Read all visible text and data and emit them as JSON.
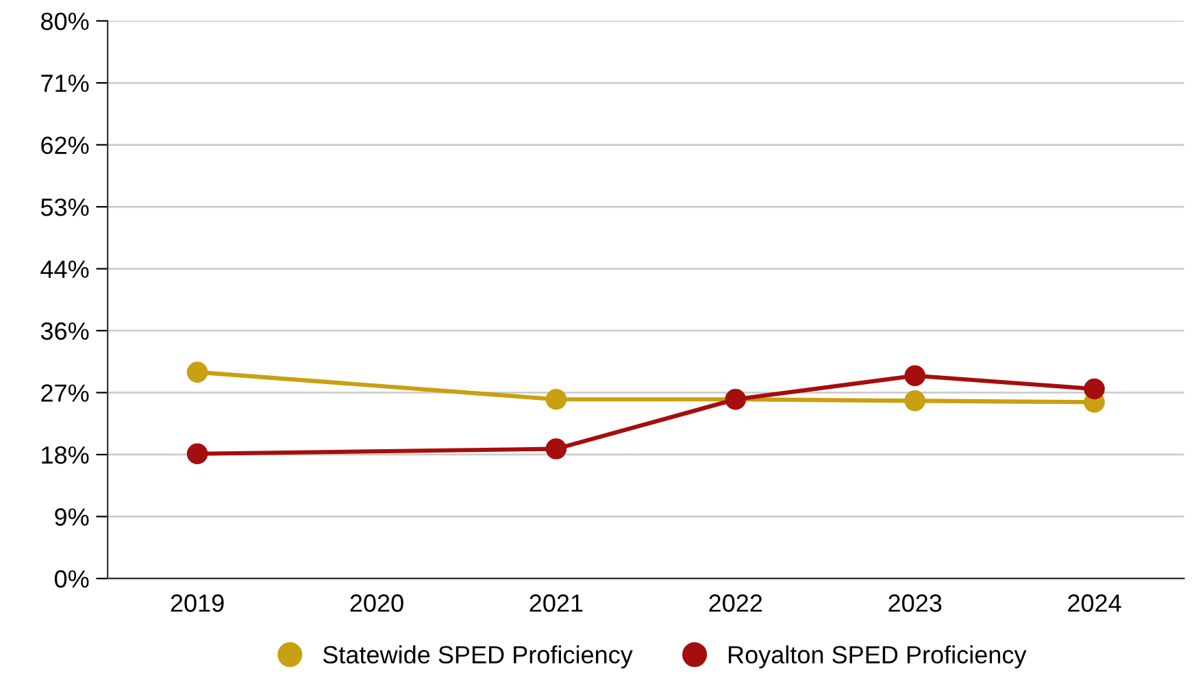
{
  "chart_data": {
    "type": "line",
    "categories": [
      "2019",
      "2020",
      "2021",
      "2022",
      "2023",
      "2024"
    ],
    "series": [
      {
        "name": "Statewide SPED Proficiency",
        "color": "#c9a012",
        "values": [
          29.6,
          null,
          25.7,
          25.7,
          25.5,
          25.3
        ]
      },
      {
        "name": "Royalton SPED Proficiency",
        "color": "#a50e0e",
        "values": [
          17.9,
          null,
          18.6,
          25.7,
          29.1,
          27.2
        ]
      }
    ],
    "ylim": [
      0,
      80
    ],
    "yticks": [
      {
        "value": 0,
        "label": "0%"
      },
      {
        "value": 8.89,
        "label": "9%"
      },
      {
        "value": 17.78,
        "label": "18%"
      },
      {
        "value": 26.67,
        "label": "27%"
      },
      {
        "value": 35.56,
        "label": "36%"
      },
      {
        "value": 44.44,
        "label": "44%"
      },
      {
        "value": 53.33,
        "label": "53%"
      },
      {
        "value": 62.22,
        "label": "62%"
      },
      {
        "value": 71.11,
        "label": "71%"
      },
      {
        "value": 80,
        "label": "80%"
      }
    ],
    "grid": "y",
    "legend": "bottom",
    "marker": "circle",
    "line_style": "solid"
  }
}
